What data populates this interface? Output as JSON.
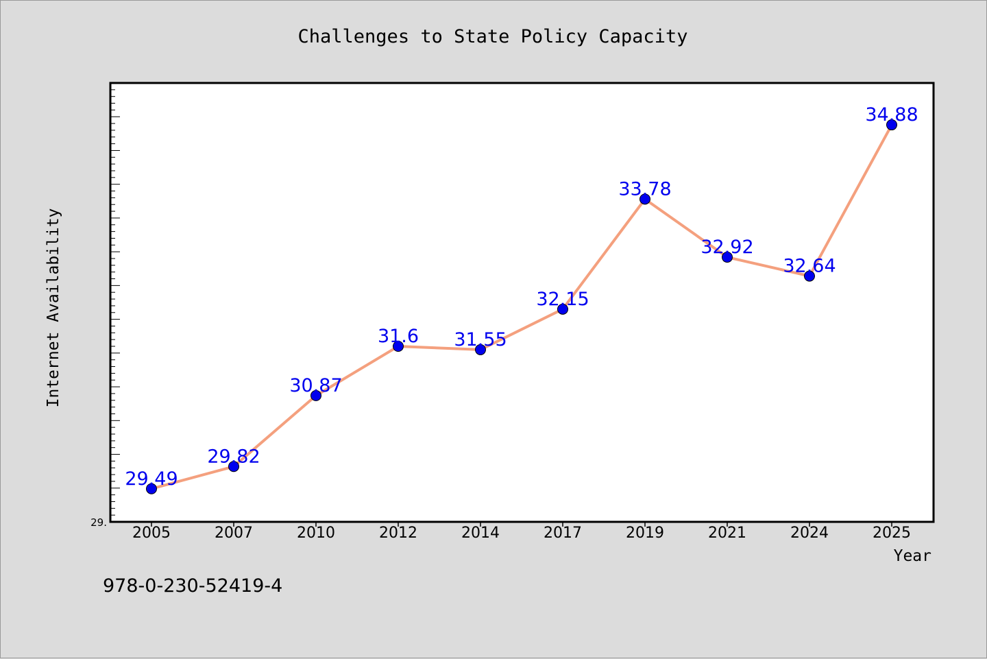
{
  "chart_data": {
    "type": "line",
    "title": "Challenges to State Policy Capacity",
    "xlabel": "Year",
    "ylabel": "Internet Availability",
    "categories": [
      "2005",
      "2007",
      "2010",
      "2012",
      "2014",
      "2017",
      "2019",
      "2021",
      "2024",
      "2025"
    ],
    "series": [
      {
        "values": [
          29.49,
          29.82,
          30.87,
          31.6,
          31.55,
          32.15,
          33.78,
          32.92,
          32.64,
          34.88
        ],
        "data_labels": [
          "29.49",
          "29.82",
          "30.87",
          "31.6",
          "31.55",
          "32.15",
          "33.78",
          "32.92",
          "32.64",
          "34.88"
        ]
      }
    ],
    "ylim": [
      29.0,
      35.5
    ],
    "y_tick_label": "29.",
    "grid": false,
    "colors": {
      "line": "#f4a07e",
      "marker": "#0000ee",
      "label": "#0000ee",
      "background": "#dcdcdc",
      "plot_background": "#ffffff"
    }
  },
  "footer": {
    "isbn": "978-0-230-52419-4"
  }
}
